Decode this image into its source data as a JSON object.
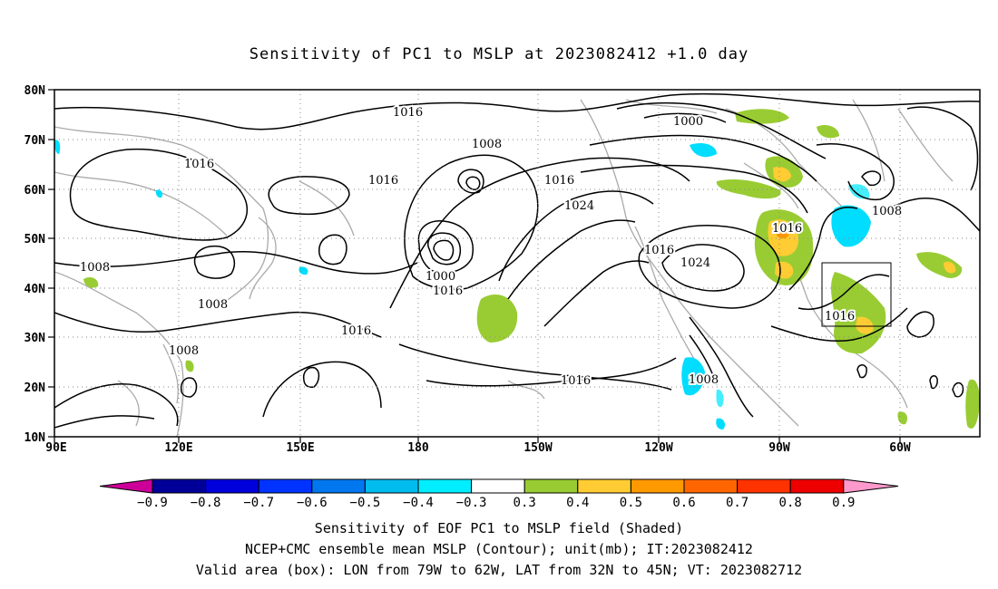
{
  "title": "Sensitivity of PC1 to MSLP at 2023082412 +1.0 day",
  "map": {
    "lon_labels": [
      "90E",
      "120E",
      "150E",
      "180",
      "150W",
      "120W",
      "90W",
      "60W"
    ],
    "lat_labels": [
      "10N",
      "20N",
      "30N",
      "40N",
      "50N",
      "60N",
      "70N",
      "80N"
    ],
    "lon_range": [
      "90E",
      "50W"
    ],
    "lat_range": [
      "10N",
      "80N"
    ],
    "grid": "dotted",
    "contour_labels": [
      "1016",
      "1008",
      "1016",
      "1016",
      "1016",
      "1016",
      "1008",
      "1008",
      "1000",
      "1016",
      "1008",
      "1000",
      "1008",
      "1024",
      "1016",
      "1016",
      "1024",
      "1016",
      "1016",
      "1008",
      "1016",
      "1008",
      "1008"
    ]
  },
  "colorbar": {
    "labels": [
      "-0.9",
      "-0.8",
      "-0.7",
      "-0.6",
      "-0.5",
      "-0.4",
      "-0.3",
      "0.3",
      "0.4",
      "0.5",
      "0.6",
      "0.7",
      "0.8",
      "0.9"
    ],
    "colors": [
      "#000099",
      "#0000dd",
      "#0033ff",
      "#0077ee",
      "#00bbee",
      "#00eeff",
      "#ffffff",
      "#99cc33",
      "#ffcc33",
      "#ff9900",
      "#ff6600",
      "#ff3300",
      "#ee0000"
    ],
    "low_end_color": "#cc0099",
    "high_end_color": "#ff99cc"
  },
  "shading_colors": {
    "green": "#99cc33",
    "yellow": "#ffcc33",
    "orange": "#ff9900",
    "cyan": "#00ddff",
    "light_cyan": "#44eeff"
  },
  "caption": {
    "line1": "Sensitivity of EOF PC1 to MSLP field (Shaded)",
    "line2": "NCEP+CMC ensemble mean MSLP (Contour); unit(mb); IT:2023082412",
    "line3": "Valid area (box): LON from 79W to 62W, LAT from 32N to 45N; VT: 2023082712"
  }
}
